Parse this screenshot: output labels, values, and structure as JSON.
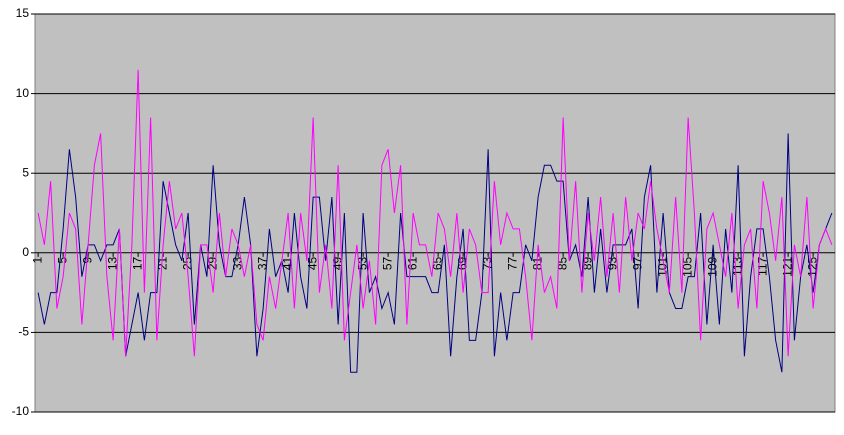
{
  "chart_data": {
    "type": "line",
    "categories": [
      1,
      null,
      null,
      null,
      5,
      null,
      null,
      null,
      9,
      null,
      null,
      null,
      13,
      null,
      null,
      null,
      17,
      null,
      null,
      null,
      21,
      null,
      null,
      null,
      25,
      null,
      null,
      null,
      29,
      null,
      null,
      null,
      33,
      null,
      null,
      null,
      37,
      null,
      null,
      null,
      41,
      null,
      null,
      null,
      45,
      null,
      null,
      null,
      49,
      null,
      null,
      null,
      53,
      null,
      null,
      null,
      57,
      null,
      null,
      null,
      61,
      null,
      null,
      null,
      65,
      null,
      null,
      null,
      69,
      null,
      null,
      null,
      73,
      null,
      null,
      null,
      77,
      null,
      null,
      null,
      81,
      null,
      null,
      null,
      85,
      null,
      null,
      null,
      89,
      null,
      null,
      null,
      93,
      null,
      null,
      null,
      97,
      null,
      null,
      null,
      101,
      null,
      null,
      null,
      105,
      null,
      null,
      null,
      109,
      null,
      null,
      null,
      113,
      null,
      null,
      null,
      117,
      null,
      null,
      null,
      121,
      null,
      null,
      null,
      125,
      null,
      null,
      null
    ],
    "series": [
      {
        "color": "#000080",
        "values": [
          -2.5,
          -4.5,
          -2.5,
          -2.5,
          1.5,
          6.5,
          3.5,
          -1.5,
          0.5,
          0.5,
          -0.5,
          0.5,
          0.5,
          1.5,
          -6.5,
          -4.5,
          -2.5,
          -5.5,
          -2.5,
          -2.5,
          4.5,
          2.5,
          0.5,
          -0.5,
          2.5,
          -4.5,
          0.5,
          -1.5,
          5.5,
          0.5,
          -1.5,
          -1.5,
          0.5,
          3.5,
          0.5,
          -6.5,
          -3.5,
          1.5,
          -1.5,
          -0.5,
          -2.5,
          2.5,
          -1.5,
          -3.5,
          3.5,
          3.5,
          -0.5,
          3.5,
          -4.5,
          2.5,
          -7.5,
          -7.5,
          2.5,
          -2.5,
          -1.5,
          -3.5,
          -2.5,
          -4.5,
          2.5,
          -1.5,
          -1.5,
          -1.5,
          -1.5,
          -2.5,
          -2.5,
          0.5,
          -6.5,
          -1.5,
          1.5,
          -5.5,
          -5.5,
          -2.5,
          6.5,
          -6.5,
          -2.5,
          -5.5,
          -2.5,
          -2.5,
          0.5,
          -0.5,
          3.5,
          5.5,
          5.5,
          4.5,
          4.5,
          -0.5,
          0.5,
          -1.5,
          3.5,
          -2.5,
          1.5,
          -2.5,
          0.5,
          0.5,
          0.5,
          1.5,
          -3.5,
          3.5,
          5.5,
          -2.5,
          2.5,
          -2.5,
          -3.5,
          -3.5,
          -1.5,
          -1.5,
          2.5,
          -4.5,
          0.5,
          -4.5,
          1.5,
          -2.5,
          5.5,
          -6.5,
          -1.5,
          1.5,
          1.5,
          -1.5,
          -5.5,
          -7.5,
          7.5,
          -5.5,
          -1.5,
          0.5,
          -2.5,
          0.5,
          1.5,
          2.5
        ]
      },
      {
        "color": "#ff00ff",
        "values": [
          2.5,
          0.5,
          4.5,
          -3.5,
          -1.5,
          2.5,
          1.5,
          -4.5,
          0.5,
          5.5,
          7.5,
          -1.5,
          -5.5,
          1.5,
          -6.5,
          0.5,
          11.5,
          -2.5,
          8.5,
          -5.5,
          0.5,
          4.5,
          1.5,
          2.5,
          -1.5,
          -6.5,
          0.5,
          0.5,
          -2.5,
          2.5,
          -1.5,
          1.5,
          0.5,
          -1.5,
          0.5,
          -4.5,
          -5.5,
          -1.5,
          -3.5,
          -0.5,
          2.5,
          -3.5,
          2.5,
          -0.5,
          8.5,
          -2.5,
          0.5,
          -3.5,
          5.5,
          -5.5,
          -2.5,
          0.5,
          -3.5,
          -0.5,
          -4.5,
          5.5,
          6.5,
          2.5,
          5.5,
          -4.5,
          2.5,
          0.5,
          0.5,
          -1.5,
          2.5,
          1.5,
          -1.5,
          2.5,
          -2.5,
          1.5,
          0.5,
          -2.5,
          -2.5,
          4.5,
          0.5,
          2.5,
          1.5,
          1.5,
          -1.5,
          -5.5,
          0.5,
          -2.5,
          -1.5,
          -3.5,
          8.5,
          -0.5,
          4.5,
          -2.5,
          2.5,
          -0.5,
          3.5,
          -1.5,
          2.5,
          -2.5,
          3.5,
          -0.5,
          2.5,
          1.5,
          4.5,
          1.5,
          -0.5,
          -2.5,
          3.5,
          -2.5,
          8.5,
          2.5,
          -5.5,
          1.5,
          2.5,
          0.5,
          -1.5,
          2.5,
          -3.5,
          0.5,
          1.5,
          -3.5,
          4.5,
          2.5,
          -0.5,
          3.5,
          -6.5,
          0.5,
          -1.5,
          3.5,
          -3.5,
          0.5,
          1.5,
          0.5
        ]
      }
    ],
    "ylim": [
      -10,
      15
    ],
    "yticks": [
      -10,
      -5,
      0,
      5,
      10,
      15
    ],
    "grid": true
  }
}
